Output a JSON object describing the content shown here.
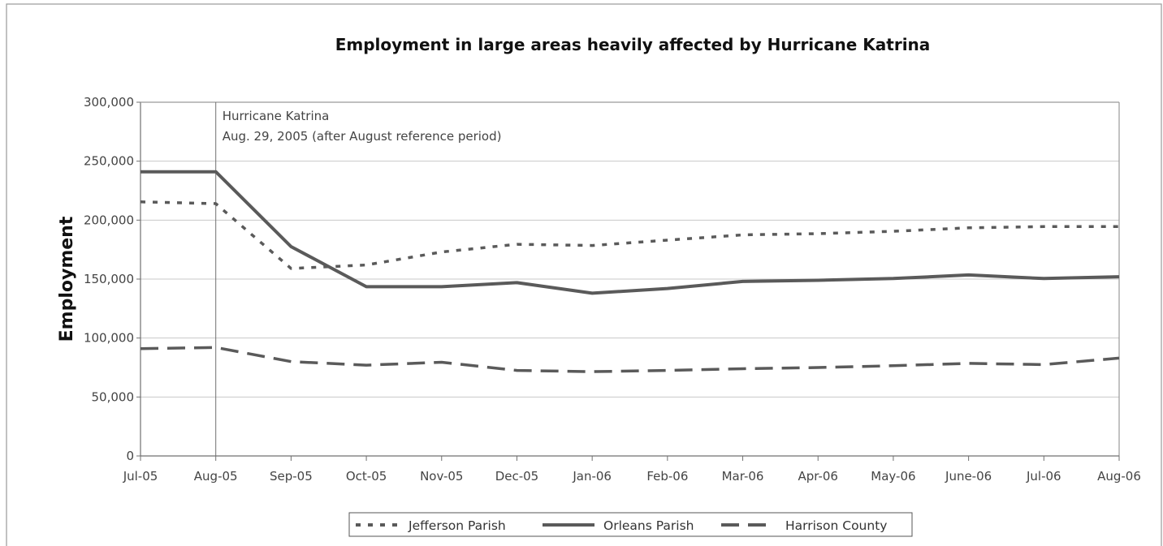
{
  "chart_data": {
    "type": "line",
    "title": "Employment in large areas heavily affected by Hurricane Katrina",
    "ylabel": "Employment",
    "xlabel": "",
    "ylim": [
      0,
      300000
    ],
    "yticks": [
      0,
      50000,
      100000,
      150000,
      200000,
      250000,
      300000
    ],
    "ytick_labels": [
      "0",
      "50,000",
      "100,000",
      "150,000",
      "200,000",
      "250,000",
      "300,000"
    ],
    "categories": [
      "Jul-05",
      "Aug-05",
      "Sep-05",
      "Oct-05",
      "Nov-05",
      "Dec-05",
      "Jan-06",
      "Feb-06",
      "Mar-06",
      "Apr-06",
      "May-06",
      "June-06",
      "Jul-06",
      "Aug-06"
    ],
    "grid": "horizontal",
    "legend_position": "bottom",
    "annotation": {
      "category": "Aug-05",
      "lines": [
        "Hurricane Katrina",
        "Aug. 29, 2005 (after August reference period)"
      ]
    },
    "series": [
      {
        "name": "Jefferson Parish",
        "style": "dotted",
        "color": "#5a5a5a",
        "values": [
          215500,
          214000,
          159000,
          162000,
          173000,
          179500,
          178500,
          183000,
          187500,
          188500,
          190500,
          193500,
          194500,
          194500
        ]
      },
      {
        "name": "Orleans Parish",
        "style": "solid",
        "color": "#5a5a5a",
        "values": [
          241000,
          241000,
          177500,
          143500,
          143500,
          147000,
          138000,
          142000,
          148000,
          149000,
          150500,
          153500,
          150500,
          152000
        ]
      },
      {
        "name": "Harrison County",
        "style": "dashed",
        "color": "#5a5a5a",
        "values": [
          91000,
          92000,
          80000,
          77000,
          79500,
          72500,
          71500,
          72500,
          74000,
          75000,
          76500,
          78500,
          77500,
          83000
        ]
      }
    ]
  }
}
